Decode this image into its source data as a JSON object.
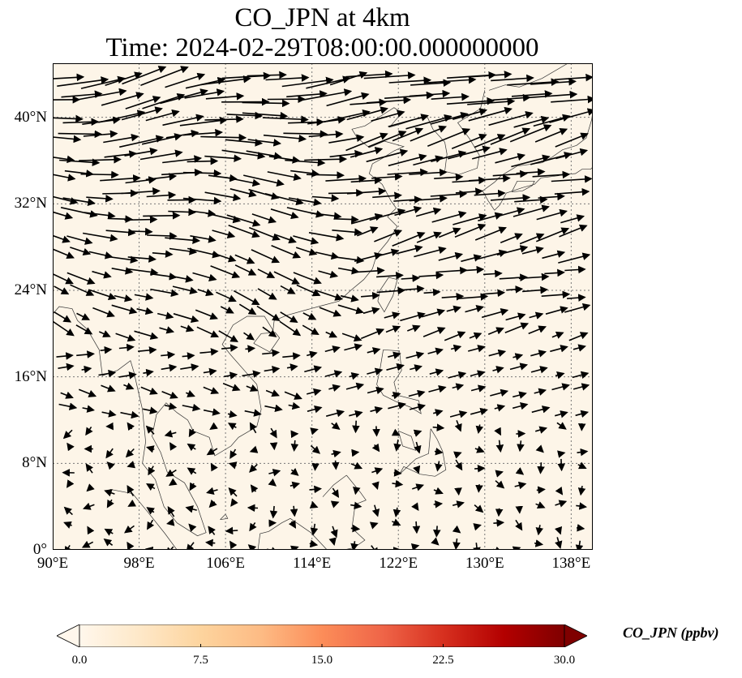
{
  "title": {
    "line1": "CO_JPN at 4km",
    "line2": "Time: 2024-02-29T08:00:00.000000000"
  },
  "map": {
    "extent": {
      "lon_min": 90,
      "lon_max": 140,
      "lat_min": 0,
      "lat_max": 45
    },
    "gridlines": true,
    "lat_ticks": [
      {
        "value": 0,
        "label": "0°"
      },
      {
        "value": 8,
        "label": "8°N"
      },
      {
        "value": 16,
        "label": "16°N"
      },
      {
        "value": 24,
        "label": "24°N"
      },
      {
        "value": 32,
        "label": "32°N"
      },
      {
        "value": 40,
        "label": "40°N"
      }
    ],
    "lon_ticks": [
      {
        "value": 90,
        "label": "90°E"
      },
      {
        "value": 98,
        "label": "98°E"
      },
      {
        "value": 106,
        "label": "106°E"
      },
      {
        "value": 114,
        "label": "114°E"
      },
      {
        "value": 122,
        "label": "122°E"
      },
      {
        "value": 130,
        "label": "130°E"
      },
      {
        "value": 138,
        "label": "138°E"
      }
    ],
    "field_color": "#fdf5e8",
    "land_color": "#fef6ea",
    "coast_color": "#333333"
  },
  "colorbar": {
    "label": "CO_JPN (ppbv)",
    "min": 0,
    "max": 30,
    "ticks": [
      {
        "value": 0,
        "label": "0.0"
      },
      {
        "value": 7.5,
        "label": "7.5"
      },
      {
        "value": 15,
        "label": "15.0"
      },
      {
        "value": 22.5,
        "label": "22.5"
      },
      {
        "value": 30,
        "label": "30.0"
      }
    ],
    "colormap": "OrRd",
    "stops": [
      "#fff7ec",
      "#fee8c8",
      "#fdd49e",
      "#fdbb84",
      "#fc8d59",
      "#ef6548",
      "#d7301f",
      "#b30000",
      "#7f0000"
    ]
  }
}
